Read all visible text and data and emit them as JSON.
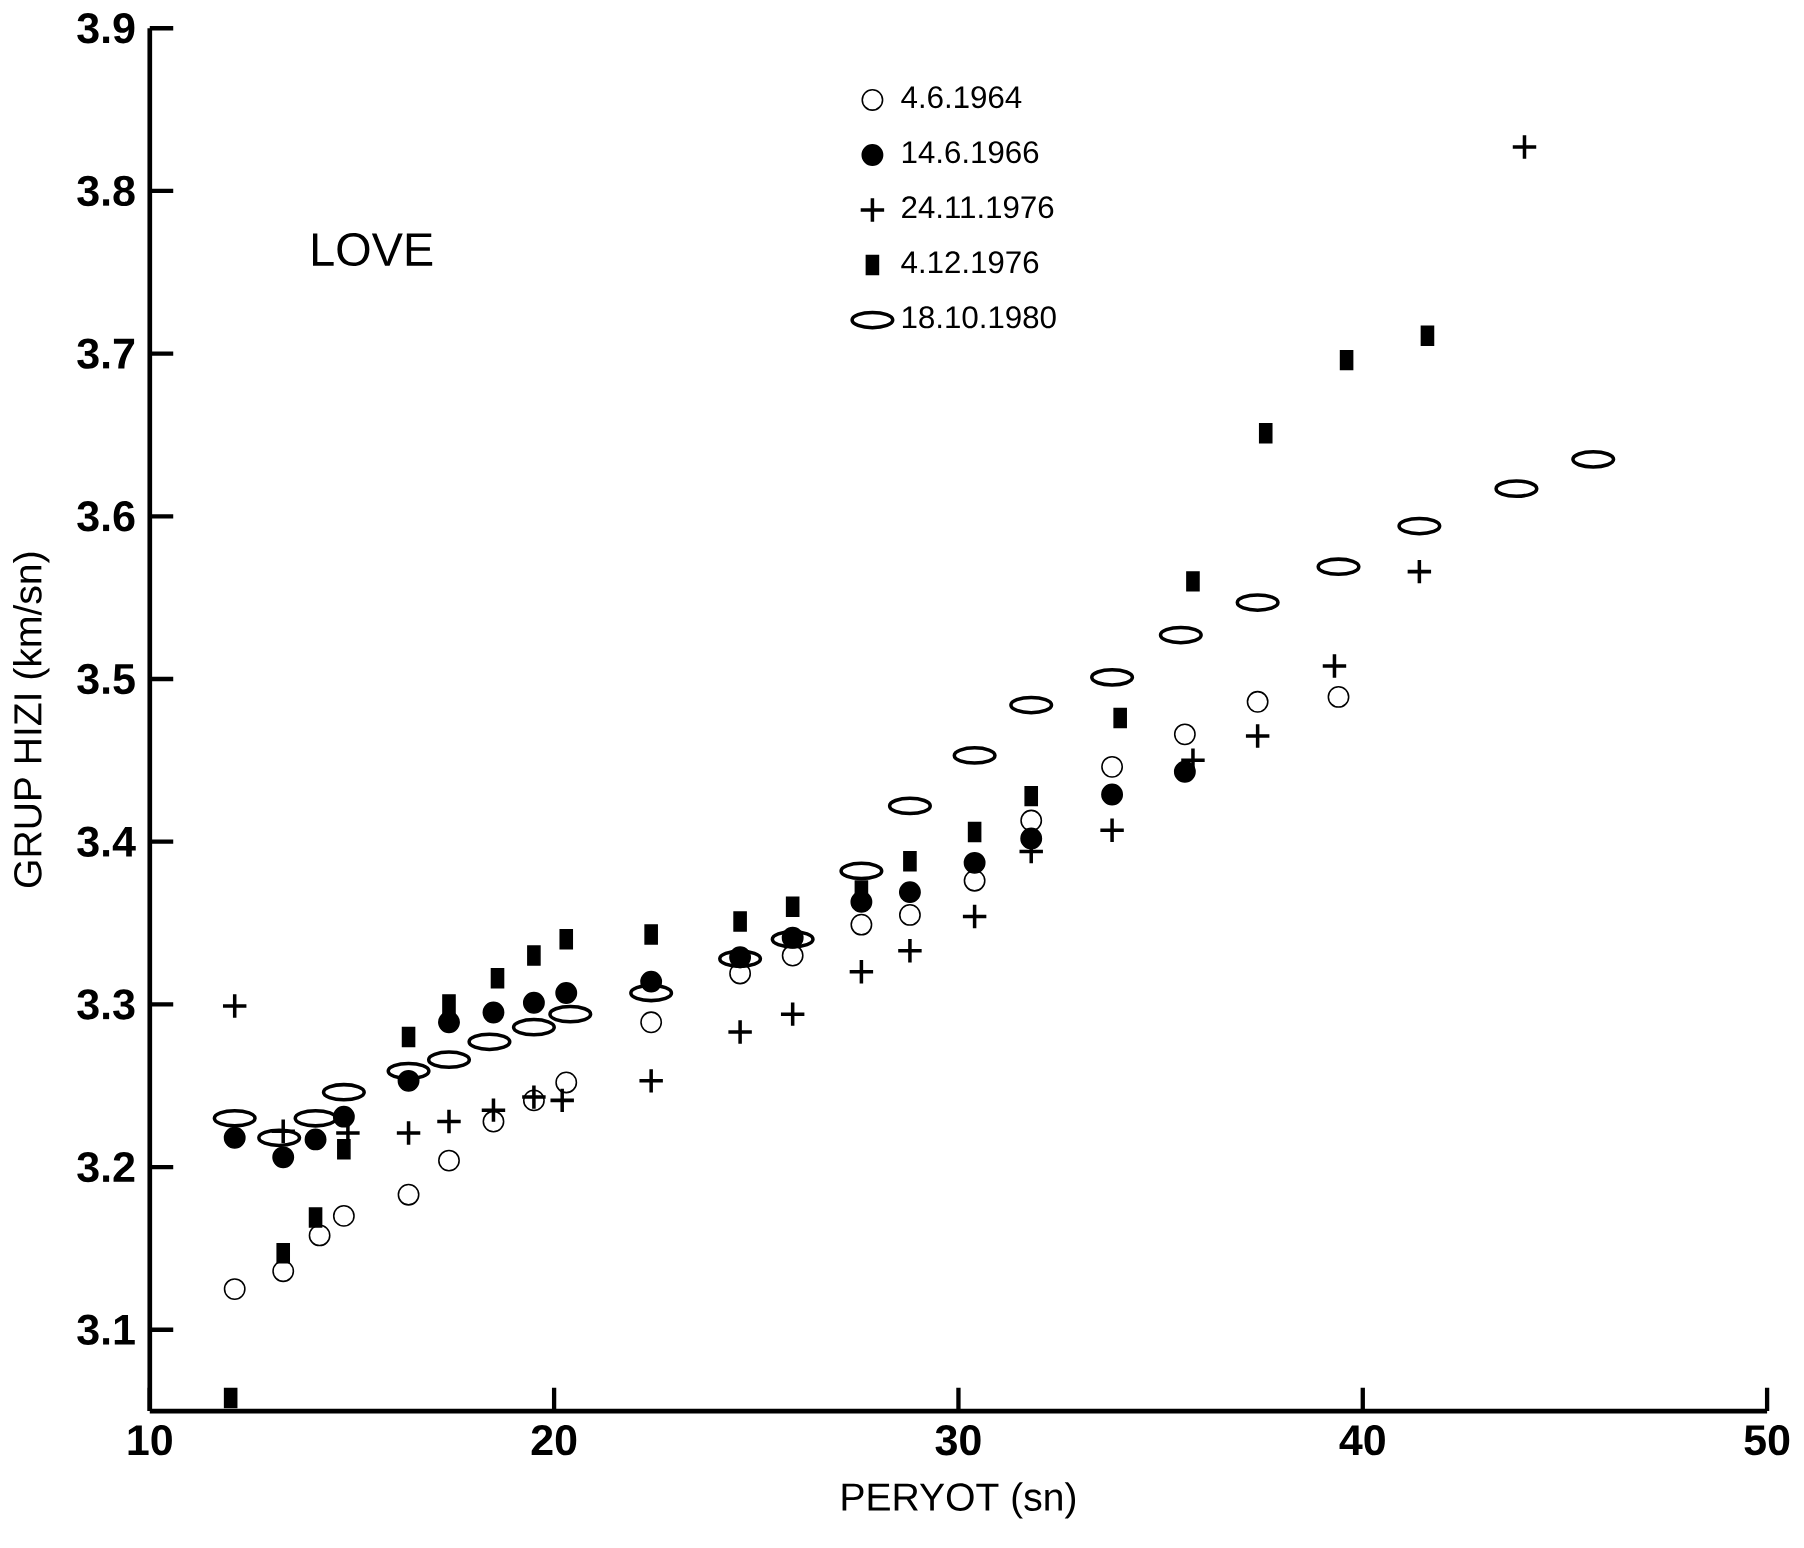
{
  "chart_data": {
    "type": "scatter",
    "xlabel": "PERYOT (sn)",
    "ylabel": "GRUP HIZI (km/sn)",
    "annotations": [
      "LOVE"
    ],
    "xlim": [
      10,
      50
    ],
    "ylim": [
      3.05,
      3.9
    ],
    "xticks": [
      10,
      20,
      30,
      40,
      50
    ],
    "yticks": [
      3.1,
      3.2,
      3.3,
      3.4,
      3.5,
      3.6,
      3.7,
      3.8,
      3.9
    ],
    "grid": false,
    "legend": "top",
    "series": [
      {
        "name": "4.6.1964",
        "color": "#000000",
        "marker": "open circle",
        "x": [
          12.1,
          13.3,
          14.2,
          14.8,
          16.4,
          17.4,
          18.5,
          19.5,
          20.3,
          22.4,
          24.6,
          25.9,
          27.6,
          28.8,
          30.4,
          31.8,
          33.8,
          35.6,
          37.4,
          39.4
        ],
        "values": [
          3.125,
          3.136,
          3.158,
          3.17,
          3.183,
          3.204,
          3.228,
          3.241,
          3.252,
          3.289,
          3.319,
          3.33,
          3.349,
          3.355,
          3.376,
          3.413,
          3.446,
          3.466,
          3.486,
          3.489
        ]
      },
      {
        "name": "14.6.1966",
        "color": "#000000",
        "marker": "circle",
        "x": [
          12.1,
          13.3,
          14.1,
          14.8,
          16.4,
          17.4,
          18.5,
          19.5,
          20.3,
          22.4,
          24.6,
          25.9,
          27.6,
          28.8,
          30.4,
          31.8,
          33.8,
          35.6
        ],
        "values": [
          3.218,
          3.206,
          3.217,
          3.231,
          3.253,
          3.289,
          3.295,
          3.301,
          3.307,
          3.314,
          3.329,
          3.341,
          3.363,
          3.369,
          3.387,
          3.402,
          3.429,
          3.443
        ]
      },
      {
        "name": "24.11.1976",
        "color": "#000000",
        "marker": "cross",
        "x": [
          12.1,
          13.3,
          14.9,
          16.4,
          17.4,
          18.5,
          19.5,
          20.2,
          22.4,
          24.6,
          25.9,
          27.6,
          28.8,
          30.4,
          31.8,
          33.8,
          35.8,
          37.4,
          39.3,
          41.4,
          44.0
        ],
        "values": [
          3.299,
          3.222,
          3.221,
          3.221,
          3.228,
          3.235,
          3.243,
          3.241,
          3.253,
          3.283,
          3.294,
          3.32,
          3.333,
          3.354,
          3.394,
          3.407,
          3.45,
          3.465,
          3.508,
          3.566,
          3.827
        ]
      },
      {
        "name": "4.12.1976",
        "color": "#000000",
        "marker": "square",
        "x": [
          12.0,
          13.3,
          14.1,
          14.8,
          16.4,
          17.4,
          18.6,
          19.5,
          20.3,
          22.4,
          24.6,
          25.9,
          27.6,
          28.8,
          30.4,
          31.8,
          34.0,
          35.8,
          37.6,
          39.6,
          41.6
        ],
        "values": [
          3.058,
          3.147,
          3.169,
          3.211,
          3.28,
          3.3,
          3.316,
          3.33,
          3.34,
          3.343,
          3.351,
          3.36,
          3.37,
          3.388,
          3.406,
          3.428,
          3.476,
          3.56,
          3.651,
          3.696,
          3.711
        ]
      },
      {
        "name": "18.10.1980",
        "color": "#000000",
        "x": [
          12.1,
          13.2,
          14.1,
          14.8,
          16.4,
          17.4,
          18.4,
          19.5,
          20.4,
          22.4,
          24.6,
          25.9,
          27.6,
          28.8,
          30.4,
          31.8,
          33.8,
          35.5,
          37.4,
          39.4,
          41.4,
          43.8,
          45.7
        ],
        "values": [
          3.23,
          3.218,
          3.23,
          3.246,
          3.259,
          3.266,
          3.277,
          3.286,
          3.294,
          3.307,
          3.328,
          3.34,
          3.382,
          3.422,
          3.453,
          3.484,
          3.501,
          3.527,
          3.547,
          3.569,
          3.594,
          3.617,
          3.635
        ]
      }
    ]
  }
}
